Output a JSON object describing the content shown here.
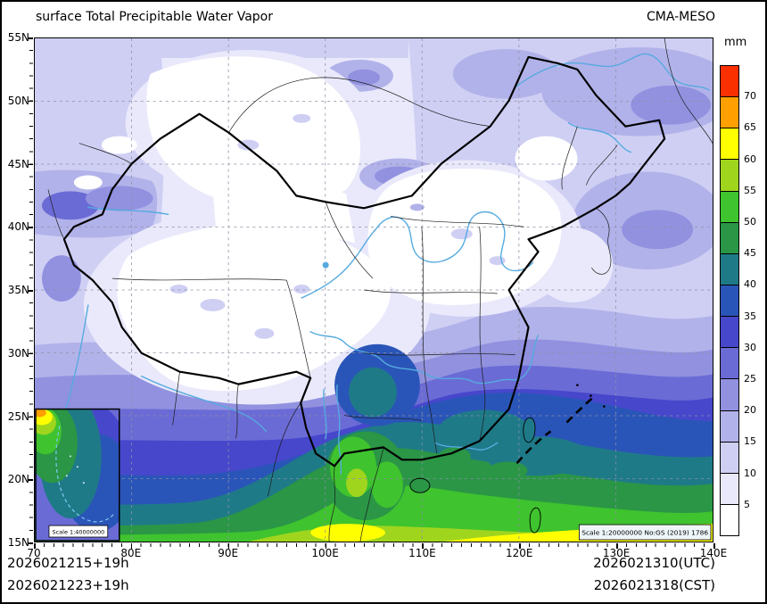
{
  "header": {
    "title": "surface Total Precipitable Water Vapor",
    "model": "CMA-MESO"
  },
  "colorbar": {
    "unit": "mm",
    "boundary_labels": [
      "70",
      "65",
      "60",
      "55",
      "50",
      "45",
      "40",
      "35",
      "30",
      "25",
      "20",
      "15",
      "10",
      "5"
    ],
    "colors_low_to_high": [
      "#ffffff",
      "#e9e9fb",
      "#cfcff4",
      "#b2b2ea",
      "#9191e0",
      "#6b6bd6",
      "#4747cc",
      "#2a55b8",
      "#1f7a88",
      "#2a9646",
      "#3fc32e",
      "#a0d51e",
      "#ffff00",
      "#ffa000",
      "#fb3000"
    ]
  },
  "axes": {
    "lat_labels": [
      "55N",
      "50N",
      "45N",
      "40N",
      "35N",
      "30N",
      "25N",
      "20N",
      "15N"
    ],
    "lon_labels": [
      "70",
      "80E",
      "90E",
      "100E",
      "110E",
      "120E",
      "130E",
      "140E"
    ]
  },
  "inset": {
    "scale_label": "Scale 1:40000000"
  },
  "map": {
    "scale_note": "Scale 1:20000000 No:GS (2019) 1786"
  },
  "footer": {
    "init_utc": "2026021215+19h",
    "init_cst": "2026021223+19h",
    "valid_utc": "2026021310(UTC)",
    "valid_cst": "2026021318(CST)"
  }
}
